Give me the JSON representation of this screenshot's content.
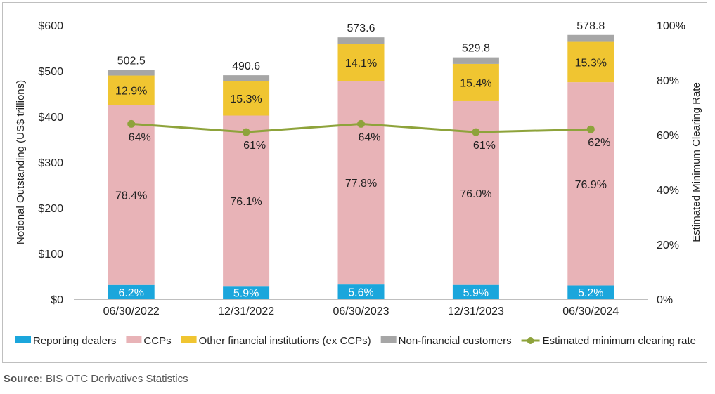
{
  "chart_data": {
    "type": "stacked-bar-with-line",
    "categories": [
      "06/30/2022",
      "12/31/2022",
      "06/30/2023",
      "12/31/2023",
      "06/30/2024"
    ],
    "totals": [
      502.5,
      490.6,
      573.6,
      529.8,
      578.8
    ],
    "total_labels": [
      "502.5",
      "490.6",
      "573.6",
      "529.8",
      "578.8"
    ],
    "series": [
      {
        "name": "Reporting dealers",
        "color": "#1ba6dc",
        "percent": [
          6.2,
          5.9,
          5.6,
          5.9,
          5.2
        ],
        "labels": [
          "6.2%",
          "5.9%",
          "5.6%",
          "5.9%",
          "5.2%"
        ]
      },
      {
        "name": "CCPs",
        "color": "#e8b3b7",
        "percent": [
          78.4,
          76.1,
          77.8,
          76.0,
          76.9
        ],
        "labels": [
          "78.4%",
          "76.1%",
          "77.8%",
          "76.0%",
          "76.9%"
        ]
      },
      {
        "name": "Other financial institutions (ex CCPs)",
        "color": "#f0c531",
        "percent": [
          12.9,
          15.3,
          14.1,
          15.4,
          15.3
        ],
        "labels": [
          "12.9%",
          "15.3%",
          "14.1%",
          "15.4%",
          "15.3%"
        ]
      },
      {
        "name": "Non-financial customers",
        "color": "#a6a6a6",
        "percent": [
          2.5,
          2.7,
          2.5,
          2.7,
          2.6
        ],
        "labels": []
      }
    ],
    "line": {
      "name": "Estimated minimum clearing rate",
      "color": "#8ea33b",
      "values": [
        64,
        61,
        64,
        61,
        62
      ],
      "labels": [
        "64%",
        "61%",
        "64%",
        "61%",
        "62%"
      ]
    },
    "ylabel": "Notional Outstanding (US$ trillions)",
    "y2label": "Estimated Minimum Clearing Rate",
    "ylim": [
      0,
      600
    ],
    "y2lim": [
      0,
      100
    ],
    "yticks": [
      "$0",
      "$100",
      "$200",
      "$300",
      "$400",
      "$500",
      "$600"
    ],
    "y2ticks": [
      "0%",
      "20%",
      "40%",
      "60%",
      "80%",
      "100%"
    ],
    "legend": "bottom",
    "grid": false
  },
  "source": {
    "label": "Source:",
    "text": " BIS OTC Derivatives Statistics"
  }
}
